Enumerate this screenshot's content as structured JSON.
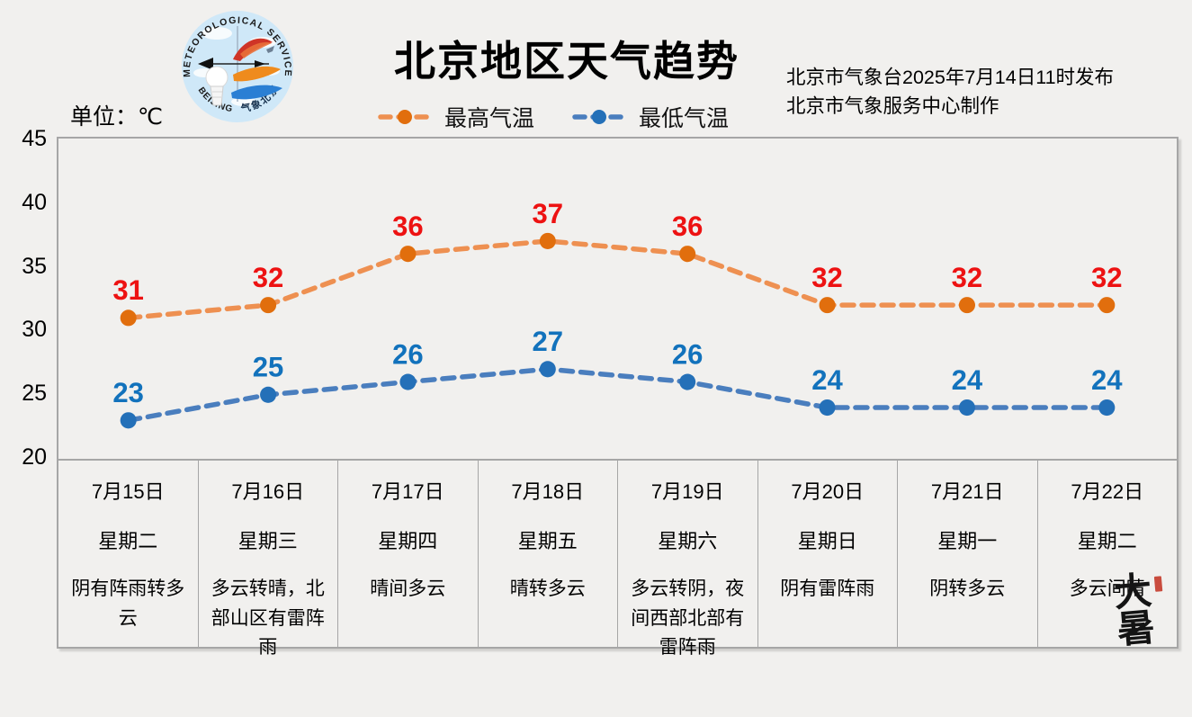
{
  "page": {
    "title": "北京地区天气趋势",
    "unit_label": "单位：℃",
    "issued_line1": "北京市气象台2025年7月14日11时发布",
    "issued_line2": "北京市气象服务中心制作",
    "solar_term_stamp": "大暑"
  },
  "logo": {
    "top_text": "METEOROLOGICAL SERVICE",
    "bottom_left_text": "BEIJING",
    "bottom_right_text": "气象北京"
  },
  "colors": {
    "background": "#f1f0ee",
    "border_gray": "#a6a6a6",
    "high_line": "#ee9051",
    "high_marker": "#e16e0d",
    "high_label": "#ed1212",
    "low_line": "#4a7ebe",
    "low_marker": "#2470b8",
    "low_label": "#1272bc"
  },
  "chart_data": {
    "type": "line",
    "title": "北京地区天气趋势",
    "unit": "℃",
    "line_style": "dashed",
    "grid": false,
    "legend_position": "top-center",
    "ylim": [
      20,
      45
    ],
    "yticks": [
      45,
      40,
      35,
      30,
      25,
      20
    ],
    "categories": [
      "7月15日",
      "7月16日",
      "7月17日",
      "7月18日",
      "7月19日",
      "7月20日",
      "7月21日",
      "7月22日"
    ],
    "series": [
      {
        "key": "high",
        "name": "最高气温",
        "values": [
          31,
          32,
          36,
          37,
          36,
          32,
          32,
          32
        ],
        "line_color": "#ee9051",
        "marker_color": "#e16e0d",
        "label_color": "#ed1212"
      },
      {
        "key": "low",
        "name": "最低气温",
        "values": [
          23,
          25,
          26,
          27,
          26,
          24,
          24,
          24
        ],
        "line_color": "#4a7ebe",
        "marker_color": "#2470b8",
        "label_color": "#1272bc"
      }
    ]
  },
  "days": [
    {
      "date": "7月15日",
      "weekday": "星期二",
      "weather": "阴有阵雨转多云"
    },
    {
      "date": "7月16日",
      "weekday": "星期三",
      "weather": "多云转晴，北部山区有雷阵雨"
    },
    {
      "date": "7月17日",
      "weekday": "星期四",
      "weather": "晴间多云"
    },
    {
      "date": "7月18日",
      "weekday": "星期五",
      "weather": "晴转多云"
    },
    {
      "date": "7月19日",
      "weekday": "星期六",
      "weather": "多云转阴，夜间西部北部有雷阵雨"
    },
    {
      "date": "7月20日",
      "weekday": "星期日",
      "weather": "阴有雷阵雨"
    },
    {
      "date": "7月21日",
      "weekday": "星期一",
      "weather": "阴转多云"
    },
    {
      "date": "7月22日",
      "weekday": "星期二",
      "weather": "多云间晴"
    }
  ]
}
